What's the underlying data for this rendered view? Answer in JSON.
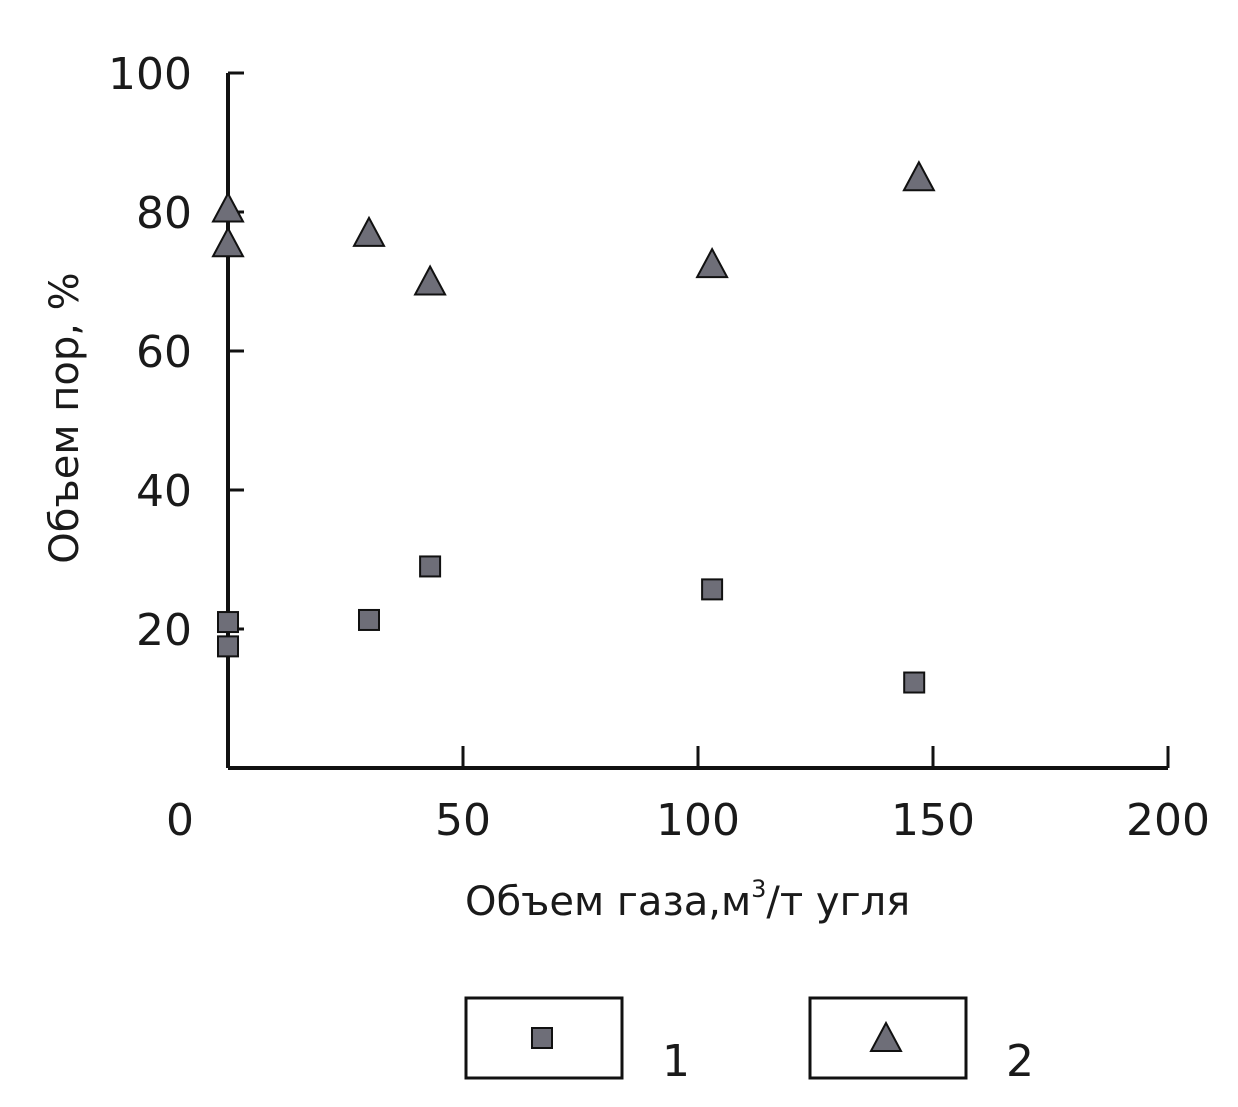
{
  "chart_data": {
    "type": "scatter",
    "xlabel": "Объем газа,м",
    "xlabel_sup": "3",
    "xlabel_tail": "/т угля",
    "ylabel": "Объем пор, %",
    "xlim": [
      0,
      200
    ],
    "ylim": [
      0,
      100
    ],
    "x_ticks": [
      0,
      50,
      100,
      150,
      200
    ],
    "y_ticks": [
      20,
      40,
      60,
      80,
      100
    ],
    "grid": false,
    "legend_position": "bottom",
    "series": [
      {
        "name": "1",
        "marker": "square",
        "color": "#6e6e78",
        "points": [
          {
            "x": 0,
            "y": 21
          },
          {
            "x": 0,
            "y": 17.5
          },
          {
            "x": 30,
            "y": 21.3
          },
          {
            "x": 43,
            "y": 29
          },
          {
            "x": 103,
            "y": 25.7
          },
          {
            "x": 146,
            "y": 12.3
          }
        ]
      },
      {
        "name": "2",
        "marker": "triangle",
        "color": "#6e6e78",
        "points": [
          {
            "x": 0,
            "y": 80.5
          },
          {
            "x": 0,
            "y": 75.5
          },
          {
            "x": 30,
            "y": 77
          },
          {
            "x": 43,
            "y": 70
          },
          {
            "x": 103,
            "y": 72.5
          },
          {
            "x": 147,
            "y": 85
          }
        ]
      }
    ]
  }
}
